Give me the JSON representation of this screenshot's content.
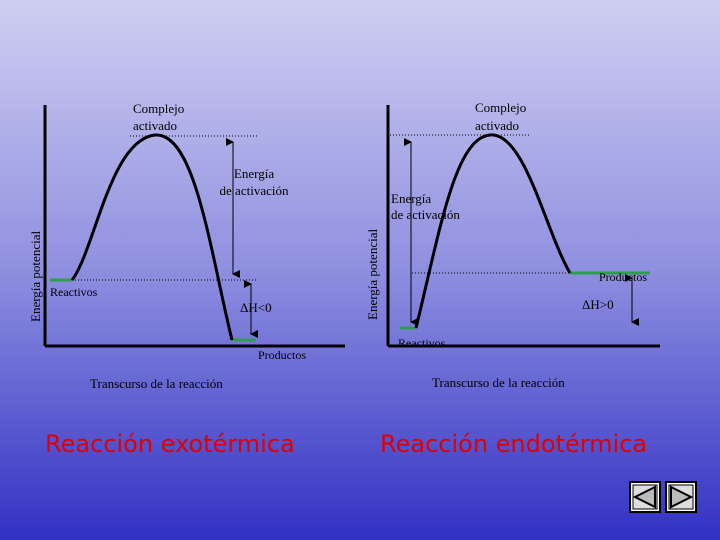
{
  "left": {
    "peak_label": [
      "Complejo",
      "activado"
    ],
    "activation_label": [
      "Energía",
      "de activación"
    ],
    "y_axis": "Energía potencial",
    "reactants": "Reactivos",
    "delta_h": "ΔH<0",
    "products": "Productos",
    "x_axis": "Transcurso de la reacción",
    "title": "Reacción exotérmica"
  },
  "right": {
    "peak_label": [
      "Complejo",
      "activado"
    ],
    "activation_label": [
      "Energía",
      "de activación"
    ],
    "y_axis": "Energía potencial",
    "reactants": "Reactivos",
    "delta_h": "ΔH>0",
    "products": "Productos",
    "x_axis": "Transcurso de la reacción",
    "title": "Reacción endotérmica"
  }
}
